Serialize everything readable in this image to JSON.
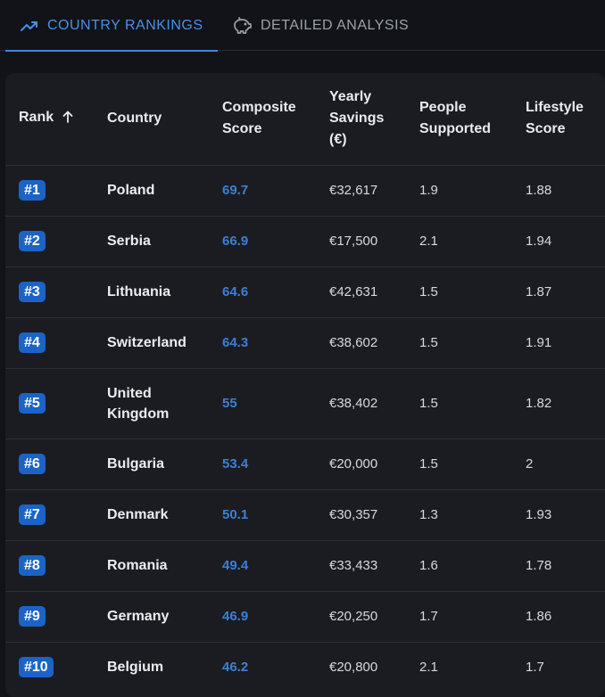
{
  "tabs": [
    {
      "label": "COUNTRY RANKINGS",
      "icon": "trending-up-icon",
      "active": true
    },
    {
      "label": "DETAILED ANALYSIS",
      "icon": "piggy-bank-icon",
      "active": false
    }
  ],
  "colors": {
    "accent": "#3f86e0",
    "badge": "#1c63c7",
    "score": "#3d7fd6"
  },
  "table": {
    "headers": {
      "rank": "Rank",
      "country": "Country",
      "composite": "Composite\nScore",
      "savings": "Yearly\nSavings\n(€)",
      "people": "People\nSupported",
      "lifestyle": "Lifestyle\nScore"
    },
    "sort_icon": "arrow-up-icon",
    "rows": [
      {
        "rank": "#1",
        "country": "Poland",
        "score": "69.7",
        "savings": "€32,617",
        "people": "1.9",
        "lifestyle": "1.88"
      },
      {
        "rank": "#2",
        "country": "Serbia",
        "score": "66.9",
        "savings": "€17,500",
        "people": "2.1",
        "lifestyle": "1.94"
      },
      {
        "rank": "#3",
        "country": "Lithuania",
        "score": "64.6",
        "savings": "€42,631",
        "people": "1.5",
        "lifestyle": "1.87"
      },
      {
        "rank": "#4",
        "country": "Switzerland",
        "score": "64.3",
        "savings": "€38,602",
        "people": "1.5",
        "lifestyle": "1.91"
      },
      {
        "rank": "#5",
        "country": "United\nKingdom",
        "score": "55",
        "savings": "€38,402",
        "people": "1.5",
        "lifestyle": "1.82"
      },
      {
        "rank": "#6",
        "country": "Bulgaria",
        "score": "53.4",
        "savings": "€20,000",
        "people": "1.5",
        "lifestyle": "2"
      },
      {
        "rank": "#7",
        "country": "Denmark",
        "score": "50.1",
        "savings": "€30,357",
        "people": "1.3",
        "lifestyle": "1.93"
      },
      {
        "rank": "#8",
        "country": "Romania",
        "score": "49.4",
        "savings": "€33,433",
        "people": "1.6",
        "lifestyle": "1.78"
      },
      {
        "rank": "#9",
        "country": "Germany",
        "score": "46.9",
        "savings": "€20,250",
        "people": "1.7",
        "lifestyle": "1.86"
      },
      {
        "rank": "#10",
        "country": "Belgium",
        "score": "46.2",
        "savings": "€20,800",
        "people": "2.1",
        "lifestyle": "1.7"
      }
    ]
  }
}
